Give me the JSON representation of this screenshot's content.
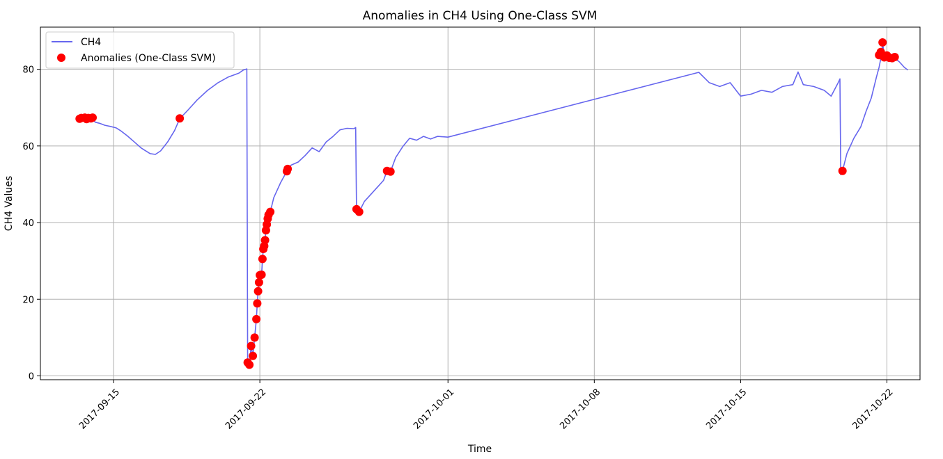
{
  "chart_data": {
    "type": "line",
    "title": "Anomalies in CH4 Using One-Class SVM",
    "xlabel": "Time",
    "ylabel": "CH4 Values",
    "xlim": [
      "2017-09-11T12:00",
      "2017-10-23T14:00"
    ],
    "ylim": [
      -1,
      91
    ],
    "x_ticks": [
      "2017-09-15",
      "2017-09-22",
      "2017-10-01",
      "2017-10-08",
      "2017-10-15",
      "2017-10-22"
    ],
    "y_ticks": [
      0,
      20,
      40,
      60,
      80
    ],
    "grid": true,
    "legend_placement": "top-left",
    "colors": {
      "line": "#6666ee",
      "anomaly": "#ff0000",
      "grid": "#b0b0b0"
    },
    "series": [
      {
        "name": "CH4",
        "kind": "line",
        "points": [
          [
            "2017-09-13T09:00",
            67.1
          ],
          [
            "2017-09-13T11:00",
            67.2
          ],
          [
            "2017-09-13T15:00",
            67.4
          ],
          [
            "2017-09-13T19:00",
            67.2
          ],
          [
            "2017-09-14T00:00",
            67.0
          ],
          [
            "2017-09-14T03:00",
            66.2
          ],
          [
            "2017-09-14T08:00",
            65.9
          ],
          [
            "2017-09-14T14:00",
            65.4
          ],
          [
            "2017-09-14T20:00",
            65.1
          ],
          [
            "2017-09-15T03:00",
            64.7
          ],
          [
            "2017-09-15T08:00",
            64.0
          ],
          [
            "2017-09-15T16:00",
            62.6
          ],
          [
            "2017-09-16T00:00",
            61.0
          ],
          [
            "2017-09-16T08:00",
            59.4
          ],
          [
            "2017-09-16T18:00",
            58.0
          ],
          [
            "2017-09-17T00:00",
            57.8
          ],
          [
            "2017-09-17T06:00",
            58.7
          ],
          [
            "2017-09-17T14:00",
            61.0
          ],
          [
            "2017-09-17T22:00",
            64.0
          ],
          [
            "2017-09-18T04:00",
            67.1
          ],
          [
            "2017-09-18T14:00",
            69.5
          ],
          [
            "2017-09-19T00:00",
            72.0
          ],
          [
            "2017-09-19T12:00",
            74.5
          ],
          [
            "2017-09-20T00:00",
            76.5
          ],
          [
            "2017-09-20T12:00",
            78.0
          ],
          [
            "2017-09-21T00:00",
            79.0
          ],
          [
            "2017-09-21T05:00",
            79.8
          ],
          [
            "2017-09-21T09:00",
            80.1
          ],
          [
            "2017-09-21T10:00",
            3.5
          ],
          [
            "2017-09-21T12:00",
            2.9
          ],
          [
            "2017-09-21T14:00",
            7.8
          ],
          [
            "2017-09-21T16:00",
            5.2
          ],
          [
            "2017-09-21T18:00",
            10.0
          ],
          [
            "2017-09-21T20:00",
            14.8
          ],
          [
            "2017-09-21T21:00",
            18.9
          ],
          [
            "2017-09-21T22:00",
            22.1
          ],
          [
            "2017-09-21T23:00",
            24.4
          ],
          [
            "2017-09-22T00:00",
            26.3
          ],
          [
            "2017-09-22T02:00",
            26.4
          ],
          [
            "2017-09-22T03:00",
            30.5
          ],
          [
            "2017-09-22T04:00",
            33.1
          ],
          [
            "2017-09-22T05:00",
            33.9
          ],
          [
            "2017-09-22T06:00",
            35.4
          ],
          [
            "2017-09-22T07:00",
            38.0
          ],
          [
            "2017-09-22T08:00",
            39.5
          ],
          [
            "2017-09-22T09:00",
            41.0
          ],
          [
            "2017-09-22T10:00",
            42.0
          ],
          [
            "2017-09-22T12:00",
            42.8
          ],
          [
            "2017-09-22T16:00",
            46.5
          ],
          [
            "2017-09-23T00:00",
            50.5
          ],
          [
            "2017-09-23T07:00",
            53.4
          ],
          [
            "2017-09-23T12:00",
            55.0
          ],
          [
            "2017-09-23T20:00",
            55.8
          ],
          [
            "2017-09-24T04:00",
            57.5
          ],
          [
            "2017-09-24T12:00",
            59.5
          ],
          [
            "2017-09-24T20:00",
            58.5
          ],
          [
            "2017-09-25T04:00",
            61.0
          ],
          [
            "2017-09-25T12:00",
            62.5
          ],
          [
            "2017-09-25T20:00",
            64.2
          ],
          [
            "2017-09-26T04:00",
            64.6
          ],
          [
            "2017-09-26T12:00",
            64.5
          ],
          [
            "2017-09-26T14:00",
            64.8
          ],
          [
            "2017-09-26T15:00",
            43.5
          ],
          [
            "2017-09-26T18:00",
            42.8
          ],
          [
            "2017-09-27T00:00",
            45.5
          ],
          [
            "2017-09-27T08:00",
            47.5
          ],
          [
            "2017-09-27T16:00",
            49.5
          ],
          [
            "2017-09-27T22:00",
            51.0
          ],
          [
            "2017-09-28T02:00",
            53.5
          ],
          [
            "2017-09-28T06:00",
            53.3
          ],
          [
            "2017-09-28T12:00",
            57.0
          ],
          [
            "2017-09-28T20:00",
            59.8
          ],
          [
            "2017-09-29T04:00",
            62.0
          ],
          [
            "2017-09-29T12:00",
            61.5
          ],
          [
            "2017-09-29T20:00",
            62.5
          ],
          [
            "2017-09-30T04:00",
            61.8
          ],
          [
            "2017-09-30T12:00",
            62.5
          ],
          [
            "2017-10-01T00:00",
            62.3
          ],
          [
            "2017-10-13T00:00",
            79.2
          ],
          [
            "2017-10-13T12:00",
            76.5
          ],
          [
            "2017-10-14T00:00",
            75.5
          ],
          [
            "2017-10-14T12:00",
            76.5
          ],
          [
            "2017-10-15T00:00",
            73.0
          ],
          [
            "2017-10-15T12:00",
            73.5
          ],
          [
            "2017-10-16T00:00",
            74.5
          ],
          [
            "2017-10-16T12:00",
            74.0
          ],
          [
            "2017-10-17T00:00",
            75.5
          ],
          [
            "2017-10-17T12:00",
            76.0
          ],
          [
            "2017-10-17T18:00",
            79.3
          ],
          [
            "2017-10-18T00:00",
            76.0
          ],
          [
            "2017-10-18T12:00",
            75.5
          ],
          [
            "2017-10-19T00:00",
            74.5
          ],
          [
            "2017-10-19T08:00",
            73.0
          ],
          [
            "2017-10-19T16:00",
            76.5
          ],
          [
            "2017-10-19T18:00",
            77.5
          ],
          [
            "2017-10-19T19:00",
            52.5
          ],
          [
            "2017-10-19T21:00",
            53.5
          ],
          [
            "2017-10-20T02:00",
            58.0
          ],
          [
            "2017-10-20T10:00",
            62.0
          ],
          [
            "2017-10-20T18:00",
            65.0
          ],
          [
            "2017-10-21T00:00",
            69.0
          ],
          [
            "2017-10-21T06:00",
            72.5
          ],
          [
            "2017-10-21T12:00",
            78.0
          ],
          [
            "2017-10-21T15:00",
            80.5
          ],
          [
            "2017-10-21T18:00",
            84.0
          ],
          [
            "2017-10-21T19:00",
            87.0
          ],
          [
            "2017-10-21T21:00",
            83.5
          ],
          [
            "2017-10-22T00:00",
            83.5
          ],
          [
            "2017-10-22T04:00",
            83.2
          ],
          [
            "2017-10-22T08:00",
            83.0
          ],
          [
            "2017-10-22T14:00",
            82.0
          ],
          [
            "2017-10-22T20:00",
            80.5
          ],
          [
            "2017-10-23T00:00",
            79.8
          ]
        ]
      },
      {
        "name": "Anomalies (One-Class SVM)",
        "kind": "scatter",
        "points": [
          [
            "2017-09-13T09:00",
            67.1
          ],
          [
            "2017-09-13T11:00",
            67.3
          ],
          [
            "2017-09-13T15:00",
            67.4
          ],
          [
            "2017-09-13T17:00",
            67.0
          ],
          [
            "2017-09-13T19:00",
            67.3
          ],
          [
            "2017-09-13T22:00",
            67.2
          ],
          [
            "2017-09-14T00:00",
            67.4
          ],
          [
            "2017-09-18T04:00",
            67.2
          ],
          [
            "2017-09-21T10:00",
            3.5
          ],
          [
            "2017-09-21T12:00",
            2.9
          ],
          [
            "2017-09-21T14:00",
            7.8
          ],
          [
            "2017-09-21T16:00",
            5.2
          ],
          [
            "2017-09-21T18:00",
            10.0
          ],
          [
            "2017-09-21T20:00",
            14.8
          ],
          [
            "2017-09-21T21:00",
            18.9
          ],
          [
            "2017-09-21T22:00",
            22.1
          ],
          [
            "2017-09-21T23:00",
            24.4
          ],
          [
            "2017-09-22T00:00",
            26.3
          ],
          [
            "2017-09-22T02:00",
            26.4
          ],
          [
            "2017-09-22T03:00",
            30.5
          ],
          [
            "2017-09-22T04:00",
            33.1
          ],
          [
            "2017-09-22T05:00",
            33.9
          ],
          [
            "2017-09-22T06:00",
            35.4
          ],
          [
            "2017-09-22T07:00",
            38.0
          ],
          [
            "2017-09-22T08:00",
            39.5
          ],
          [
            "2017-09-22T09:00",
            41.0
          ],
          [
            "2017-09-22T10:00",
            42.0
          ],
          [
            "2017-09-22T12:00",
            42.8
          ],
          [
            "2017-09-23T07:00",
            53.4
          ],
          [
            "2017-09-23T08:00",
            54.0
          ],
          [
            "2017-09-26T15:00",
            43.5
          ],
          [
            "2017-09-26T18:00",
            42.8
          ],
          [
            "2017-09-28T02:00",
            53.5
          ],
          [
            "2017-09-28T06:00",
            53.3
          ],
          [
            "2017-10-19T21:00",
            53.5
          ],
          [
            "2017-10-21T15:00",
            83.7
          ],
          [
            "2017-10-21T17:00",
            84.5
          ],
          [
            "2017-10-21T19:00",
            87.0
          ],
          [
            "2017-10-21T21:00",
            83.1
          ],
          [
            "2017-10-22T00:00",
            83.6
          ],
          [
            "2017-10-22T03:00",
            83.0
          ],
          [
            "2017-10-22T06:00",
            82.9
          ],
          [
            "2017-10-22T09:00",
            83.2
          ]
        ]
      }
    ]
  }
}
